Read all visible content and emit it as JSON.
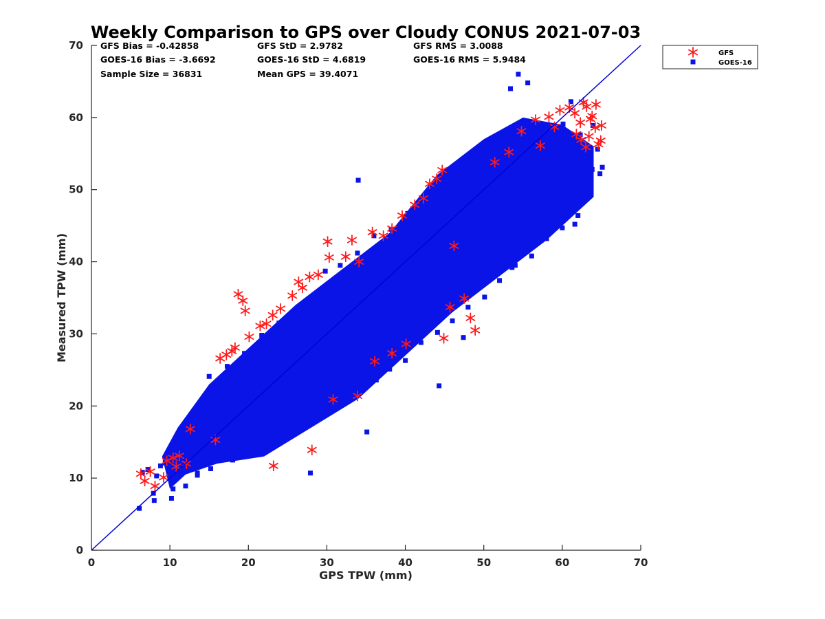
{
  "chart_data": {
    "type": "scatter",
    "title": "Weekly Comparison to GPS over Cloudy CONUS 2021-07-03",
    "xlabel": "GPS TPW (mm)",
    "ylabel": "Measured TPW (mm)",
    "xlim": [
      0,
      70
    ],
    "ylim": [
      0,
      70
    ],
    "xticks": [
      "0",
      "10",
      "20",
      "30",
      "40",
      "50",
      "60",
      "70"
    ],
    "yticks": [
      "0",
      "10",
      "20",
      "30",
      "40",
      "50",
      "60",
      "70"
    ],
    "grid": false,
    "legend_position": "outside top-right",
    "reference_line": {
      "x": [
        0,
        70
      ],
      "y": [
        0,
        70
      ],
      "color": "#0000dd"
    },
    "stats": [
      [
        "GFS Bias = -0.42858",
        "GFS StD = 2.9782",
        "GFS RMS = 3.0088"
      ],
      [
        "GOES-16 Bias = -3.6692",
        "GOES-16 StD = 4.6819",
        "GOES-16 RMS = 5.9484"
      ],
      [
        "Sample Size = 36831",
        "Mean GPS = 39.4071",
        ""
      ]
    ],
    "series": [
      {
        "name": "GFS",
        "marker": "asterisk",
        "color": "#ff1a1a",
        "x": [
          6.3,
          6.8,
          7.5,
          8.1,
          9.2,
          9.6,
          10.4,
          10.8,
          11.2,
          12.1,
          12.6,
          15.8,
          16.4,
          17.2,
          17.9,
          18.3,
          18.7,
          19.3,
          19.6,
          20.1,
          21.5,
          22.3,
          23.1,
          24.1,
          25.6,
          26.4,
          26.9,
          27.8,
          28.9,
          30.1,
          30.3,
          32.4,
          33.2,
          34.1,
          35.8,
          37.2,
          38.3,
          39.6,
          41.2,
          42.3,
          43.1,
          44.0,
          44.7,
          46.2,
          47.5,
          48.3,
          48.9,
          45.7,
          44.9,
          40.1,
          38.3,
          36.1,
          28.1,
          23.2,
          30.8,
          33.9,
          51.4,
          53.2,
          54.8,
          56.6,
          58.3,
          59.7,
          60.9,
          61.6,
          62.3,
          62.7,
          63.1,
          63.4,
          63.8,
          64.2,
          64.6,
          65.0,
          62.4,
          63.6,
          61.8,
          64.9,
          63.0,
          64.3,
          59.0,
          57.2
        ],
        "y": [
          10.6,
          9.6,
          10.9,
          8.9,
          10.1,
          12.4,
          12.8,
          11.6,
          13.1,
          12.0,
          16.8,
          15.3,
          26.6,
          27.1,
          27.6,
          28.1,
          35.5,
          34.6,
          33.2,
          29.6,
          31.1,
          31.4,
          32.6,
          33.5,
          35.3,
          37.2,
          36.4,
          37.9,
          38.2,
          42.8,
          40.6,
          40.7,
          43.0,
          40.0,
          44.1,
          43.6,
          44.6,
          46.4,
          47.9,
          48.8,
          50.8,
          51.5,
          52.7,
          42.2,
          34.9,
          32.2,
          30.5,
          33.7,
          29.4,
          28.6,
          27.3,
          26.2,
          13.9,
          11.7,
          20.9,
          21.4,
          53.8,
          55.2,
          58.1,
          59.7,
          60.1,
          61.0,
          61.4,
          60.6,
          59.3,
          62.1,
          61.5,
          57.4,
          60.2,
          58.6,
          56.3,
          58.9,
          56.9,
          59.8,
          57.7,
          56.8,
          55.9,
          61.8,
          58.7,
          56.1
        ]
      },
      {
        "name": "GOES-16",
        "marker": "square",
        "color": "#0a14e6",
        "x": [
          6.1,
          6.5,
          7.2,
          7.9,
          8.3,
          8.8,
          9.4,
          10.2,
          10.6,
          11.3,
          11.9,
          12.4,
          13.1,
          13.5,
          14.2,
          14.8,
          15.3,
          15.9,
          16.4,
          17.1,
          17.6,
          18.2,
          18.8,
          19.3,
          19.9,
          20.5,
          21.1,
          21.8,
          22.4,
          23.0,
          23.6,
          24.3,
          24.9,
          25.5,
          26.2,
          26.8,
          27.5,
          28.1,
          28.7,
          29.4,
          30.0,
          30.7,
          31.3,
          32.0,
          32.6,
          33.3,
          33.9,
          34.6,
          35.2,
          35.9,
          36.5,
          37.2,
          37.8,
          38.5,
          39.1,
          39.8,
          40.4,
          41.1,
          41.7,
          42.4,
          43.0,
          43.7,
          44.3,
          45.0,
          45.6,
          46.3,
          46.9,
          47.6,
          48.2,
          48.9,
          49.5,
          50.2,
          50.8,
          51.5,
          52.1,
          52.8,
          53.4,
          54.1,
          54.7,
          55.4,
          56.0,
          56.7,
          57.3,
          58.0,
          58.6,
          59.3,
          59.9,
          60.6,
          61.2,
          61.9,
          62.5,
          63.2,
          63.8,
          64.5,
          65.1,
          8.0,
          10.4,
          12.0,
          13.5,
          15.2,
          18.0,
          20.3,
          22.5,
          24.0,
          26.0,
          28.2,
          30.3,
          32.4,
          34.5,
          36.3,
          38.0,
          40.0,
          42.0,
          44.1,
          46.0,
          48.0,
          50.1,
          52.0,
          54.0,
          56.1,
          58.0,
          60.0,
          62.0,
          27.9,
          35.1,
          54.4,
          55.6,
          53.4,
          61.1,
          63.9,
          64.8,
          34.0,
          44.3,
          47.4,
          49.8,
          53.6,
          57.3,
          61.6,
          29.8,
          31.7,
          33.9,
          36.0,
          38.2,
          40.3,
          42.6,
          44.8,
          47.0,
          49.1,
          51.3,
          53.5,
          55.7,
          57.9,
          60.1,
          62.3,
          15.0,
          17.3,
          19.5,
          21.7,
          23.9,
          26.1,
          28.3,
          30.5,
          32.7,
          34.9,
          37.1,
          39.3,
          41.5,
          43.7,
          45.9,
          48.1,
          50.3,
          52.5,
          54.7,
          56.9
        ],
        "y": [
          5.8,
          10.8,
          11.2,
          7.9,
          10.3,
          11.7,
          12.1,
          7.2,
          13.4,
          12.6,
          11.1,
          14.8,
          15.1,
          10.4,
          16.3,
          12.9,
          17.4,
          14.3,
          18.1,
          15.6,
          19.8,
          15.2,
          20.4,
          16.9,
          21.6,
          18.1,
          22.1,
          19.3,
          23.4,
          20.6,
          24.7,
          21.1,
          25.3,
          22.8,
          26.6,
          23.4,
          27.9,
          24.2,
          28.3,
          25.7,
          29.6,
          26.9,
          30.8,
          27.4,
          31.3,
          28.7,
          32.9,
          29.1,
          33.5,
          30.6,
          34.8,
          31.8,
          35.4,
          32.9,
          36.8,
          33.3,
          37.9,
          34.6,
          38.4,
          35.8,
          39.7,
          36.2,
          40.9,
          37.5,
          41.3,
          38.8,
          42.6,
          39.2,
          43.9,
          40.4,
          44.4,
          41.7,
          45.8,
          42.2,
          46.3,
          43.6,
          47.7,
          44.1,
          48.9,
          45.3,
          49.6,
          46.8,
          50.2,
          47.4,
          51.5,
          48.8,
          52.9,
          49.1,
          53.4,
          50.6,
          54.7,
          51.2,
          52.8,
          55.6,
          53.1,
          6.9,
          8.5,
          8.9,
          10.7,
          11.3,
          12.5,
          13.3,
          14.9,
          15.3,
          17.1,
          17.9,
          19.2,
          21.4,
          22.5,
          23.6,
          25.1,
          26.3,
          28.8,
          30.2,
          31.8,
          33.7,
          35.1,
          37.4,
          39.5,
          40.8,
          43.2,
          44.7,
          46.4,
          10.7,
          16.4,
          66.0,
          64.8,
          64.0,
          62.2,
          58.9,
          52.2,
          51.3,
          22.8,
          29.5,
          37.6,
          39.2,
          43.0,
          45.2,
          38.7,
          39.5,
          41.2,
          43.6,
          44.5,
          46.7,
          48.2,
          49.8,
          51.6,
          53.4,
          54.9,
          56.5,
          57.8,
          58.3,
          59.1,
          57.6,
          24.1,
          25.5,
          27.3,
          29.8,
          31.5,
          33.1,
          34.7,
          36.2,
          37.8,
          39.9,
          41.6,
          43.3,
          45.1,
          46.9,
          48.5,
          50.2,
          51.8,
          53.9,
          55.5,
          56.8
        ]
      }
    ]
  }
}
